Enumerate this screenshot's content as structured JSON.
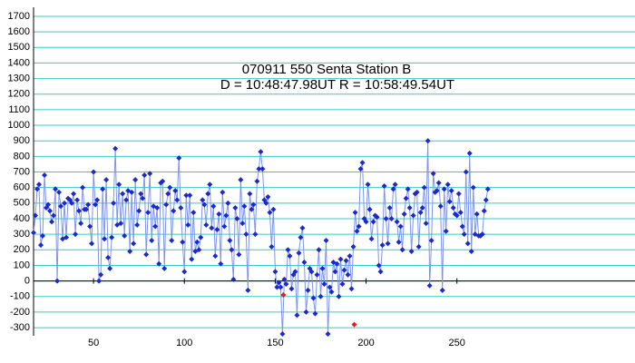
{
  "chart_data": {
    "type": "line",
    "title": "070911 550 Senta  Station B",
    "subtitle": "D = 10:48:47.98UT   R = 10:58:49.54UT",
    "xlim": [
      17,
      348
    ],
    "ylim": [
      -352,
      1758
    ],
    "xticks": [
      50,
      100,
      150,
      200,
      250
    ],
    "yticks": [
      -300,
      -200,
      -100,
      0,
      100,
      200,
      300,
      400,
      500,
      600,
      700,
      800,
      900,
      1000,
      1100,
      1200,
      1300,
      1400,
      1500,
      1600,
      1700
    ],
    "grid": true,
    "series": [
      {
        "color": "#1a2ad0",
        "line_color": "#7f95e6",
        "x": [
          17,
          18,
          19,
          20,
          21,
          22,
          23,
          24,
          25,
          26,
          27,
          28,
          29,
          30,
          31,
          32,
          33,
          34,
          35,
          36,
          37,
          38,
          39,
          40,
          41,
          42,
          43,
          44,
          45,
          46,
          47,
          48,
          49,
          50,
          51,
          52,
          53,
          54,
          55,
          56,
          57,
          58,
          59,
          60,
          61,
          62,
          63,
          64,
          65,
          66,
          67,
          68,
          69,
          70,
          71,
          72,
          73,
          74,
          75,
          76,
          77,
          78,
          79,
          80,
          81,
          82,
          83,
          84,
          85,
          86,
          87,
          88,
          89,
          90,
          91,
          92,
          93,
          94,
          95,
          96,
          97,
          98,
          99,
          100,
          101,
          102,
          103,
          104,
          105,
          106,
          107,
          108,
          109,
          110,
          111,
          112,
          113,
          114,
          115,
          116,
          117,
          118,
          119,
          120,
          121,
          122,
          123,
          124,
          125,
          126,
          127,
          128,
          129,
          130,
          131,
          132,
          133,
          134,
          135,
          136,
          137,
          138,
          139,
          140,
          141,
          142,
          143,
          144,
          145,
          146,
          147,
          148,
          149,
          150,
          151,
          152,
          153,
          154,
          155,
          156,
          157,
          158,
          159,
          160,
          161,
          162,
          163,
          164,
          165,
          166,
          167,
          168,
          169,
          170,
          171,
          172,
          173,
          174,
          175,
          176,
          177,
          178,
          179,
          180,
          181,
          182,
          183,
          184,
          185,
          186,
          187,
          188,
          189,
          190,
          191,
          192,
          193,
          194,
          195,
          196,
          197,
          198,
          199,
          200,
          201,
          202,
          203,
          204,
          205,
          206,
          207,
          208,
          209,
          210,
          211,
          212,
          213,
          214,
          215,
          216,
          217,
          218,
          219,
          220,
          221,
          222,
          223,
          224,
          225,
          226,
          227,
          228,
          229,
          230,
          231,
          232,
          233,
          234,
          235,
          236,
          237,
          238,
          239,
          240,
          241,
          242,
          243,
          244,
          245,
          246,
          247,
          248,
          249,
          250,
          251,
          252,
          253,
          254,
          255,
          256,
          257,
          258,
          259,
          260,
          261,
          262,
          263,
          264,
          265,
          266,
          267
        ],
        "values": [
          310,
          420,
          590,
          620,
          230,
          290,
          680,
          470,
          490,
          450,
          380,
          420,
          590,
          0,
          570,
          480,
          270,
          500,
          280,
          530,
          520,
          500,
          560,
          300,
          520,
          450,
          370,
          600,
          460,
          460,
          490,
          350,
          240,
          700,
          490,
          520,
          0,
          40,
          590,
          270,
          650,
          150,
          80,
          280,
          500,
          850,
          360,
          620,
          370,
          560,
          290,
          520,
          580,
          190,
          570,
          240,
          650,
          360,
          450,
          560,
          530,
          680,
          170,
          440,
          690,
          260,
          480,
          350,
          470,
          110,
          630,
          640,
          80,
          490,
          560,
          600,
          260,
          450,
          580,
          520,
          790,
          470,
          250,
          60,
          550,
          360,
          550,
          140,
          440,
          190,
          250,
          200,
          280,
          520,
          490,
          360,
          560,
          620,
          340,
          480,
          160,
          330,
          430,
          110,
          570,
          350,
          420,
          500,
          260,
          200,
          10,
          470,
          400,
          170,
          650,
          370,
          480,
          300,
          -60,
          560,
          460,
          490,
          300,
          640,
          720,
          830,
          720,
          520,
          500,
          540,
          440,
          220,
          460,
          60,
          -40,
          -10,
          -40,
          -340,
          10,
          -20,
          200,
          160,
          -50,
          40,
          60,
          -220,
          180,
          280,
          340,
          120,
          -200,
          -60,
          80,
          60,
          -110,
          -210,
          40,
          200,
          -100,
          80,
          -20,
          260,
          -340,
          -40,
          -70,
          120,
          60,
          110,
          -100,
          140,
          -20,
          70,
          130,
          40,
          160,
          -50,
          220,
          440,
          320,
          350,
          720,
          760,
          400,
          380,
          620,
          460,
          270,
          380,
          420,
          410,
          100,
          60,
          230,
          610,
          400,
          240,
          470,
          400,
          590,
          620,
          380,
          250,
          350,
          200,
          430,
          530,
          590,
          470,
          190,
          420,
          560,
          570,
          220,
          440,
          470,
          600,
          370,
          900,
          -30,
          260,
          690,
          570,
          580,
          630,
          480,
          -60,
          590,
          320,
          620,
          510,
          580,
          470,
          430,
          420,
          560,
          440,
          350,
          300,
          700,
          240,
          820,
          190,
          600,
          300,
          430,
          290,
          290,
          300,
          450,
          520,
          590
        ]
      },
      {
        "color": "#e02020",
        "x": [
          154.5,
          193.5
        ],
        "values": [
          -90,
          -280
        ]
      }
    ]
  }
}
